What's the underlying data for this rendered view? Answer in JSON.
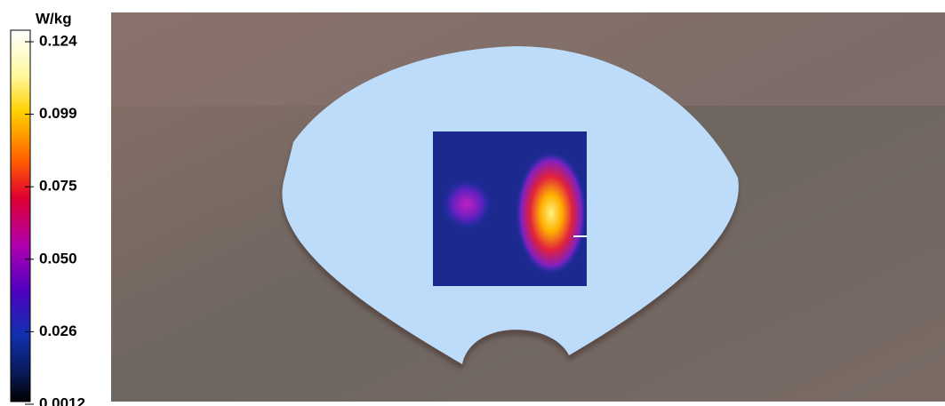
{
  "colorbar": {
    "unit": "W/kg",
    "ticks": [
      "0.124",
      "0.099",
      "0.075",
      "0.050",
      "0.026",
      "0.0012"
    ]
  }
}
